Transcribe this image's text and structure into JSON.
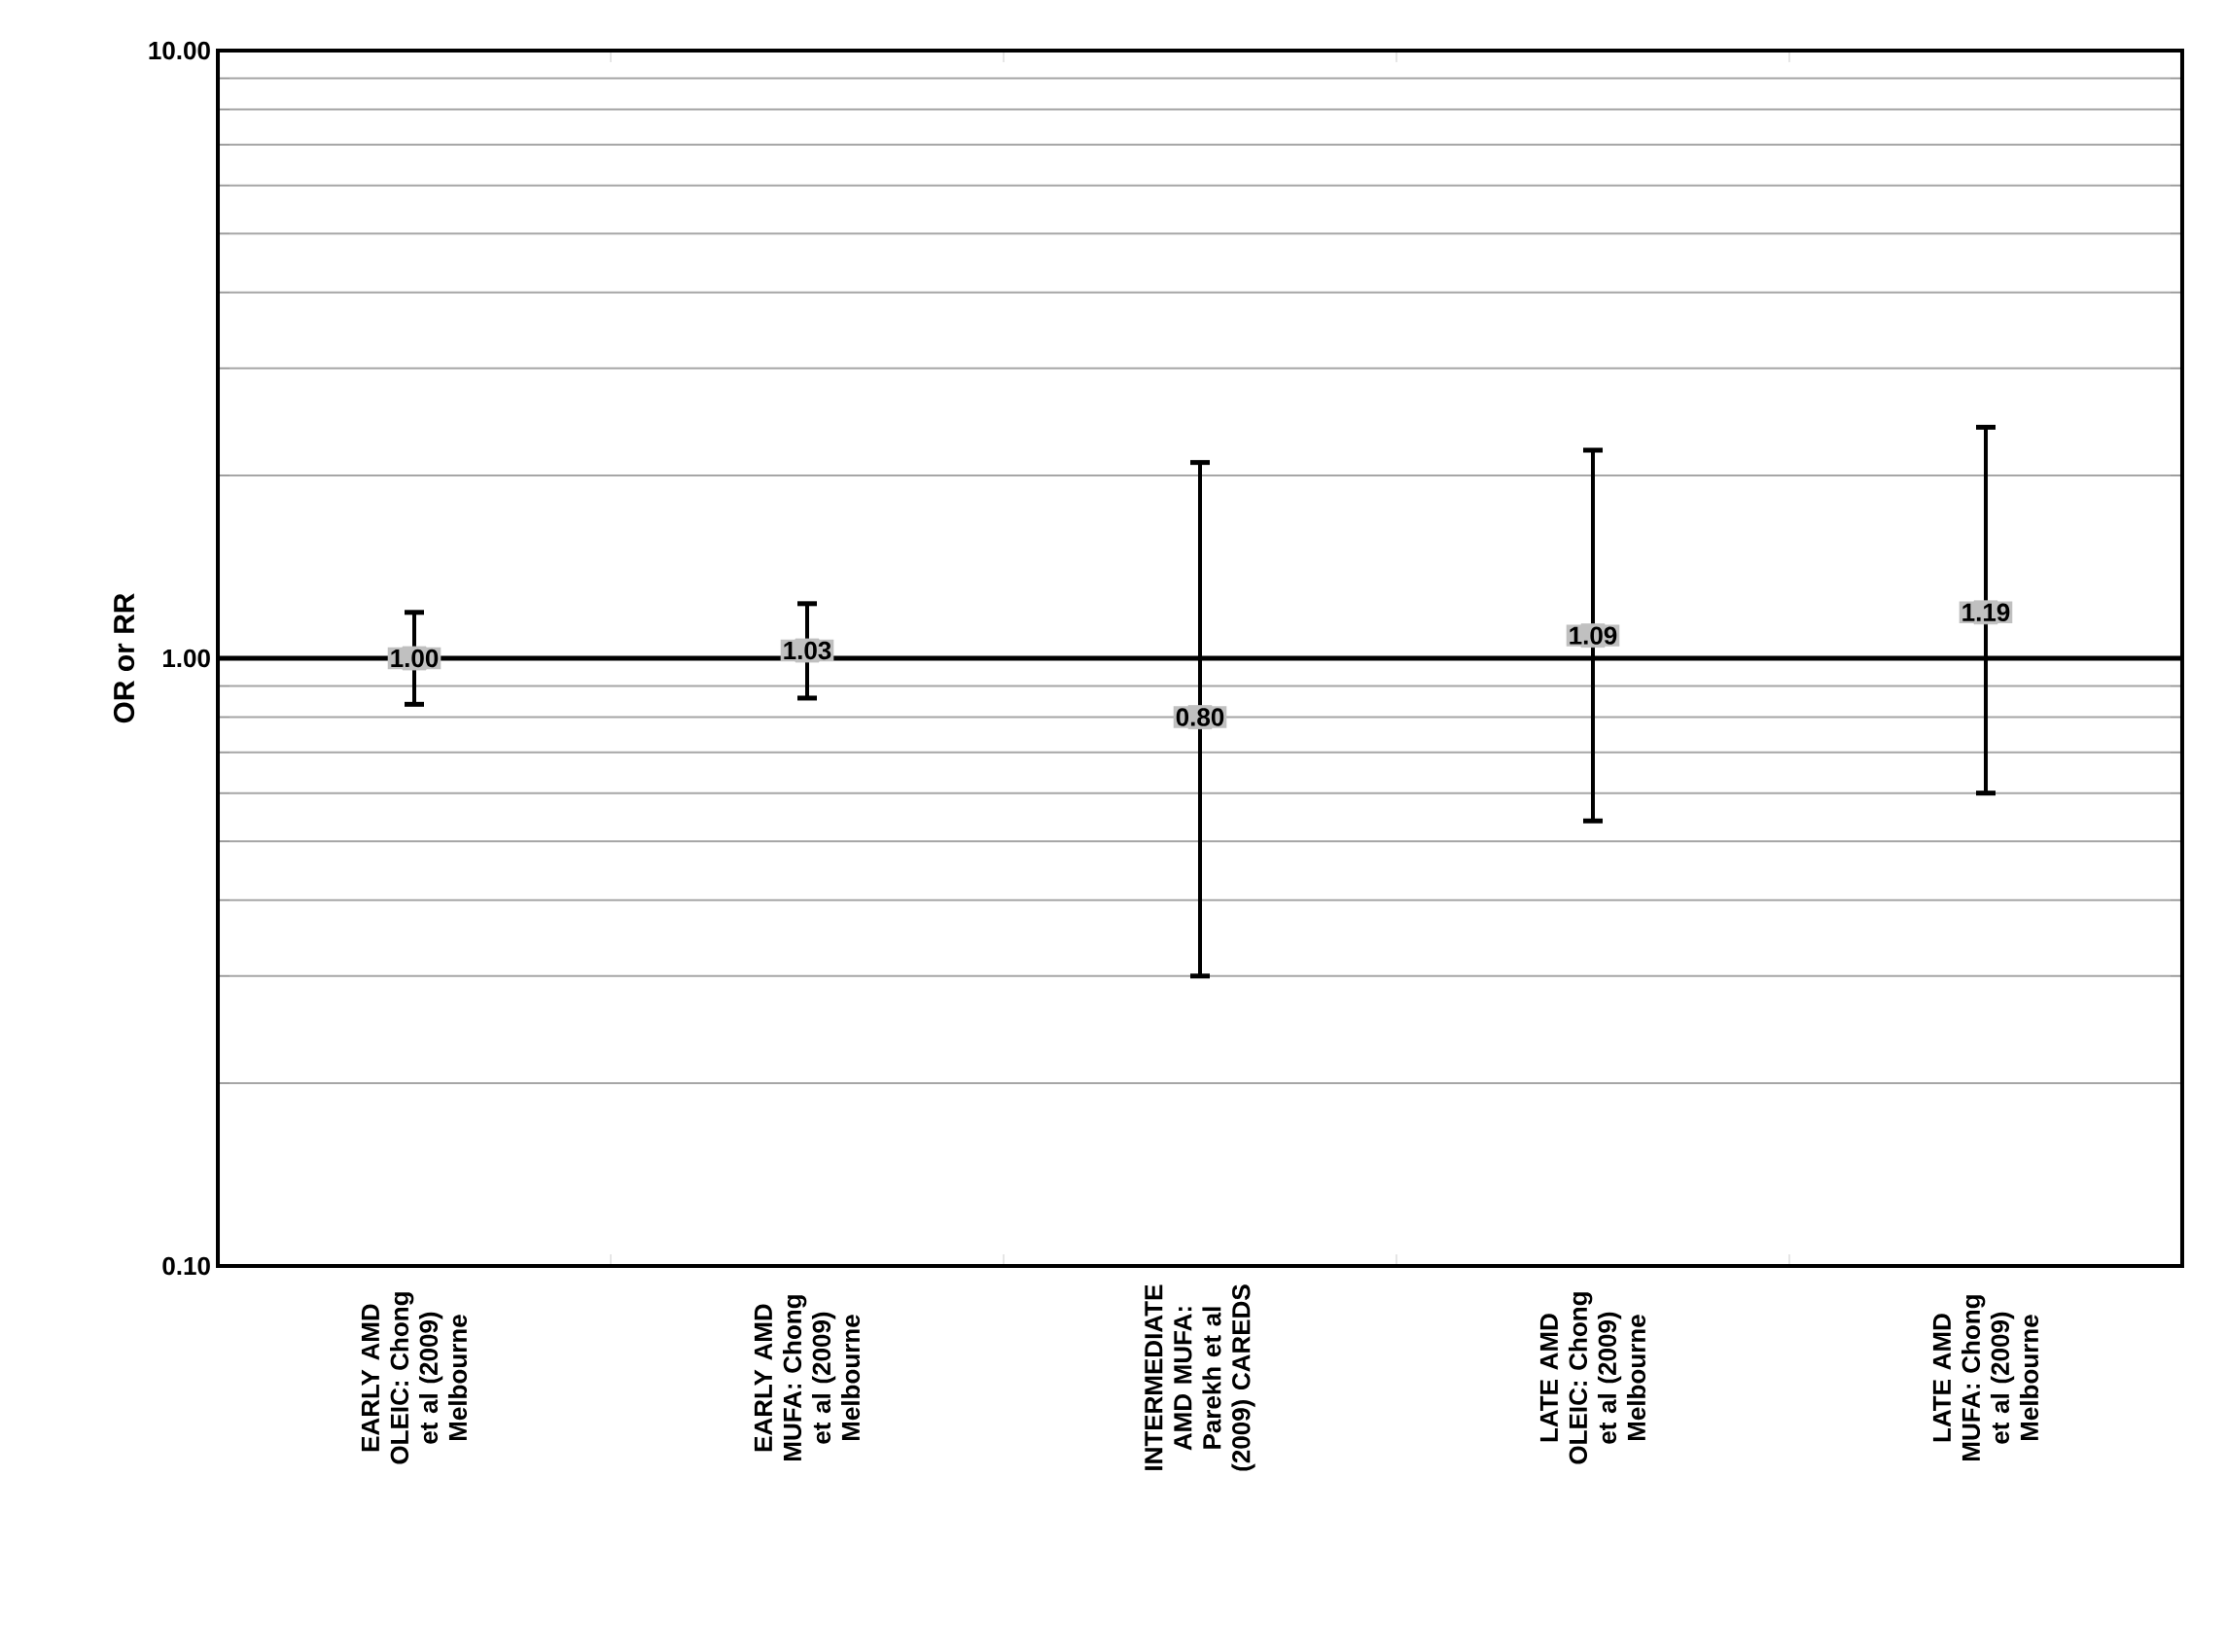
{
  "chart_data": {
    "type": "scatter",
    "ylabel": "OR or RR",
    "categories": [
      "EARLY AMD OLEIC: Chong et al (2009) Melbourne",
      "EARLY AMD MUFA: Chong et al (2009) Melbourne",
      "INTERMEDIATE AMD MUFA: Parekh et al (2009) CAREDS",
      "LATE AMD OLEIC: Chong et al (2009) Melbourne",
      "LATE AMD MUFA: Chong et al (2009) Melbourne"
    ],
    "values": [
      1.0,
      1.03,
      0.8,
      1.09,
      1.19
    ],
    "errors": [
      [
        0.84,
        1.19
      ],
      [
        0.86,
        1.23
      ],
      [
        0.3,
        2.1
      ],
      [
        0.54,
        2.2
      ],
      [
        0.6,
        2.4
      ]
    ],
    "value_labels": [
      "1.00",
      "1.03",
      "0.80",
      "1.09",
      "1.19"
    ],
    "color": "#c0c0c0",
    "marker": "square",
    "log": "y",
    "grid": "y",
    "ylim": [
      0.1,
      10
    ],
    "yticks": [
      {
        "value": 0.1,
        "label": "0.10"
      },
      {
        "value": 1,
        "label": "1.00"
      },
      {
        "value": 10,
        "label": "10.00"
      }
    ],
    "ref_lines": [
      {
        "axis": "y",
        "value": 1,
        "color": "#000000"
      }
    ]
  }
}
